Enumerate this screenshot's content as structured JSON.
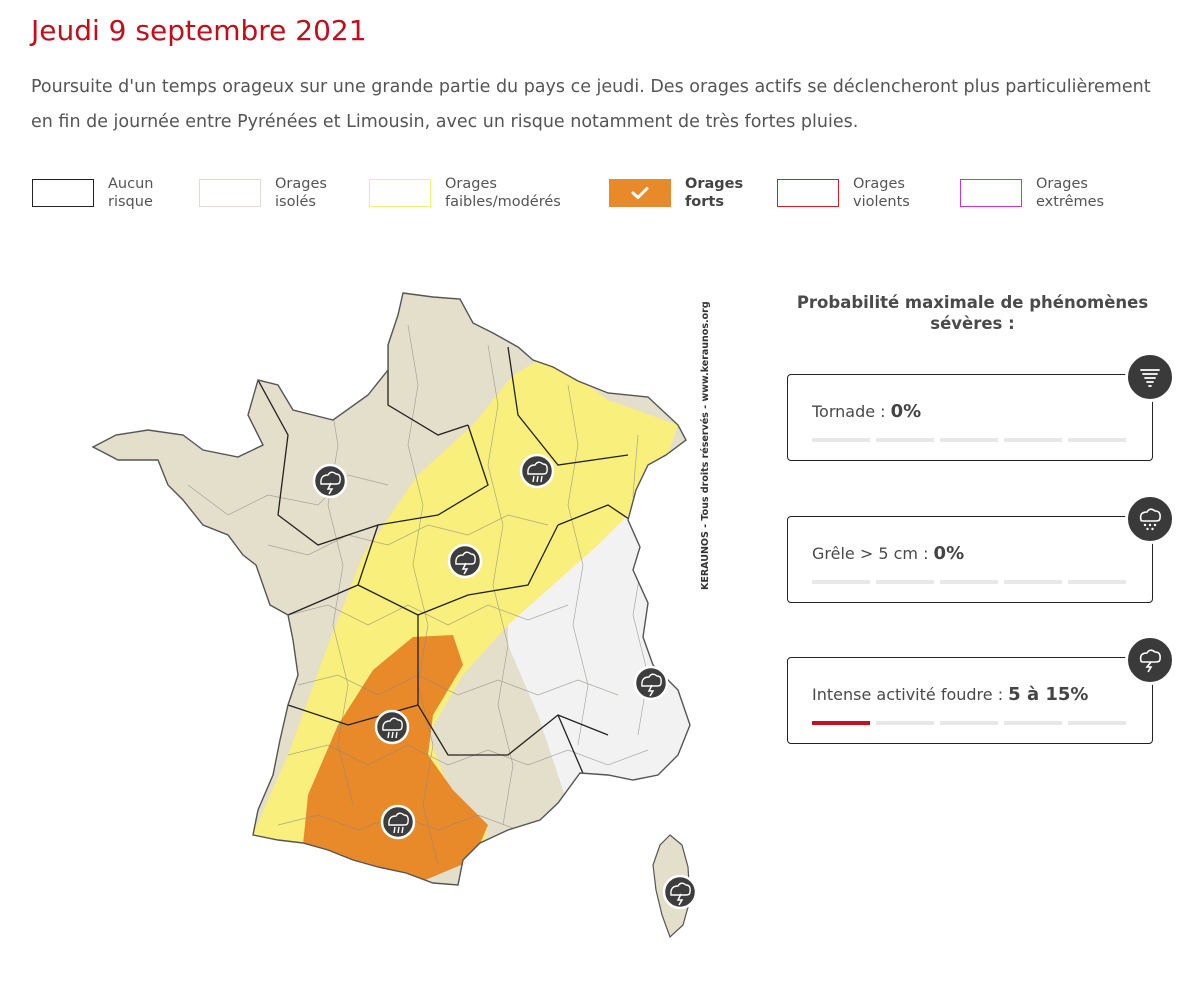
{
  "header": {
    "date": "Jeudi 9 septembre 2021",
    "intro": "Poursuite d'un temps orageux sur une grande partie du pays ce jeudi. Des orages actifs se déclencheront plus particulièrement en fin de journée entre Pyrénées et Limousin, avec un risque notamment de très fortes pluies."
  },
  "legend": {
    "items": [
      {
        "line1": "Aucun",
        "line2": "risque",
        "border": "#222222",
        "fill": "#ffffff",
        "active": false
      },
      {
        "line1": "Orages",
        "line2": "isolés",
        "border": "#e2dccb",
        "fill": "#ffffff",
        "active": false
      },
      {
        "line1": "Orages",
        "line2": "faibles/modérés",
        "border": "#f6ee7a",
        "fill": "#ffffff",
        "active": false
      },
      {
        "line1": "Orages",
        "line2": "forts",
        "border": "#e8892a",
        "fill": "#e8892a",
        "active": true
      },
      {
        "line1": "Orages",
        "line2": "violents",
        "border": "#d0202a",
        "fill": "#ffffff",
        "active": false
      },
      {
        "line1": "Orages",
        "line2": "extrêmes",
        "border": "#c236d8",
        "fill": "#ffffff",
        "active": false
      }
    ],
    "check_icon": "check-icon"
  },
  "map": {
    "credit": "KERAUNOS - Tous droits réservés - www.keraunos.org",
    "zone_colors": {
      "isolated": "#e4dfca",
      "weak": "#f8ef7c",
      "strong": "#e8892a",
      "none": "#f2f2f2"
    },
    "storm_icons": [
      "storm-lightning-icon",
      "storm-rain-icon",
      "storm-lightning-icon",
      "storm-rain-icon",
      "storm-rain-icon",
      "storm-lightning-icon",
      "storm-lightning-icon"
    ]
  },
  "probabilities": {
    "title_line1": "Probabilité maximale de phénomènes",
    "title_line2": "sévères :",
    "cards": [
      {
        "label": "Tornade : ",
        "value": "0%",
        "icon": "tornado-icon",
        "level": 0
      },
      {
        "label": "Grêle > 5 cm : ",
        "value": "0%",
        "icon": "hail-icon",
        "level": 0
      },
      {
        "label": "Intense activité foudre : ",
        "value": "5 à 15%",
        "icon": "lightning-cloud-icon",
        "level": 1
      }
    ],
    "bar_count": 5,
    "accent": "#c4121f"
  }
}
